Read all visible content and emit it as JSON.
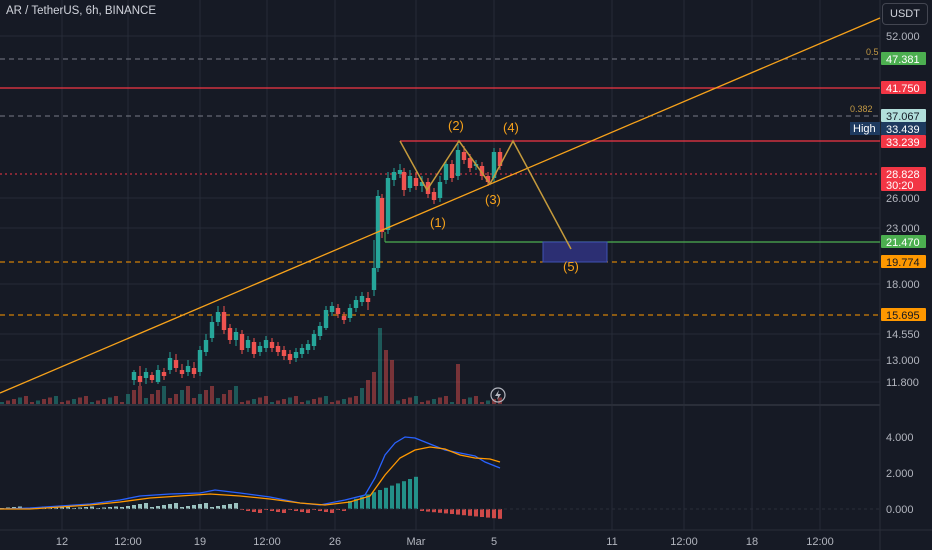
{
  "header": {
    "symbol_title": "AR / TetherUS, 6h, BINANCE",
    "currency": "USDT"
  },
  "price_axis": {
    "ticks": [
      "52.000",
      "26.000",
      "23.000",
      "18.000",
      "14.550",
      "13.000",
      "11.800"
    ],
    "tags": [
      {
        "label": "47.381",
        "bg": "#4caf50",
        "fg": "#ffffff"
      },
      {
        "label": "41.750",
        "bg": "#f23645",
        "fg": "#ffffff"
      },
      {
        "label": "37.067",
        "bg": "#b2dfdb",
        "fg": "#131722"
      },
      {
        "label": "33.439",
        "bg": "#1e3a5f",
        "fg": "#ffffff"
      },
      {
        "label": "33.239",
        "bg": "#f23645",
        "fg": "#ffffff"
      },
      {
        "label": "28.828",
        "bg": "#f23645",
        "fg": "#ffffff",
        "sub": "30:20"
      },
      {
        "label": "21.470",
        "bg": "#4caf50",
        "fg": "#ffffff"
      },
      {
        "label": "19.774",
        "bg": "#ff9800",
        "fg": "#131722"
      },
      {
        "label": "15.695",
        "bg": "#ff9800",
        "fg": "#131722"
      }
    ],
    "high_label": "High",
    "fib_labels": [
      "0.5",
      "0.382"
    ]
  },
  "indicator_axis": {
    "ticks": [
      "4.000",
      "2.000",
      "0.000"
    ]
  },
  "time_axis": {
    "ticks": [
      "12",
      "12:00",
      "19",
      "12:00",
      "26",
      "Mar",
      "5",
      "11",
      "12:00",
      "18",
      "12:00"
    ]
  },
  "wave_labels": [
    "(1)",
    "(2)",
    "(3)",
    "(4)",
    "(5)"
  ],
  "icons": {
    "replay": "lightning-icon"
  },
  "colors": {
    "bull": "#26a69a",
    "bear": "#ef5350",
    "trend": "#f7a21b",
    "macd": "#2962ff",
    "signal": "#ff9800"
  }
}
